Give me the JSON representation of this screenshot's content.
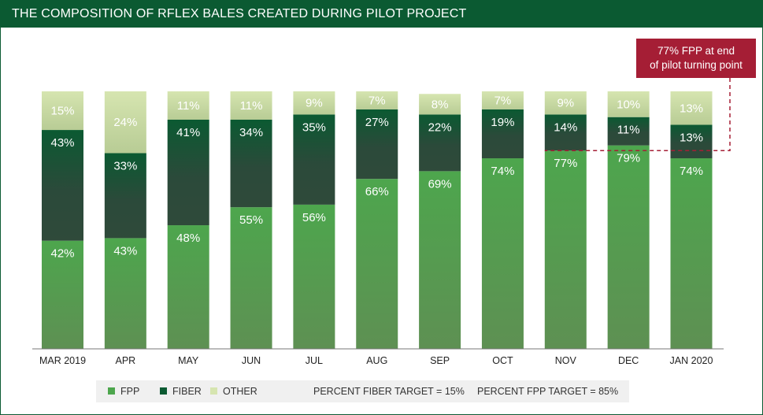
{
  "title": "THE COMPOSITION OF RFLEX BALES CREATED DURING PILOT PROJECT",
  "callout": {
    "line1": "77% FPP at end",
    "line2": "of pilot turning point",
    "color": "#a51e35"
  },
  "legend": {
    "fpp": "FPP",
    "fiber": "FIBER",
    "other": "OTHER",
    "fiber_target": "PERCENT FIBER TARGET = 15%",
    "fpp_target": "PERCENT FPP TARGET = 85%"
  },
  "colors": {
    "fpp_top": "#4da64d",
    "fpp_bottom": "#5e9053",
    "fiber_top": "#0b5a32",
    "fiber_mid": "#2b4a3a",
    "other_top": "#d6e5b0",
    "other_bottom": "#b8cc95",
    "title_bar": "#0b5a32",
    "axis": "#777777"
  },
  "chart_data": {
    "type": "bar",
    "stacked": true,
    "categories": [
      "MAR 2019",
      "APR",
      "MAY",
      "JUN",
      "JUL",
      "AUG",
      "SEP",
      "OCT",
      "NOV",
      "DEC",
      "JAN 2020"
    ],
    "series": [
      {
        "name": "FPP",
        "values": [
          42,
          43,
          48,
          55,
          56,
          66,
          69,
          74,
          77,
          79,
          74
        ]
      },
      {
        "name": "FIBER",
        "values": [
          43,
          33,
          41,
          34,
          35,
          27,
          22,
          19,
          14,
          11,
          13
        ]
      },
      {
        "name": "OTHER",
        "values": [
          15,
          24,
          11,
          11,
          9,
          7,
          8,
          7,
          9,
          10,
          13
        ]
      }
    ],
    "labels": {
      "FPP": [
        "42%",
        "43%",
        "48%",
        "55%",
        "56%",
        "66%",
        "69%",
        "74%",
        "77%",
        "79%",
        "74%"
      ],
      "FIBER": [
        "43%",
        "33%",
        "41%",
        "34%",
        "35%",
        "27%",
        "22%",
        "19%",
        "14%",
        "11%",
        "13%"
      ],
      "OTHER": [
        "15%",
        "24%",
        "11%",
        "11%",
        "9%",
        "7%",
        "8%",
        "7%",
        "9%",
        "10%",
        "13%"
      ]
    },
    "ylim": [
      0,
      100
    ],
    "grid": false,
    "legend": "bottom",
    "annotation": "77% FPP at end of pilot turning point"
  }
}
